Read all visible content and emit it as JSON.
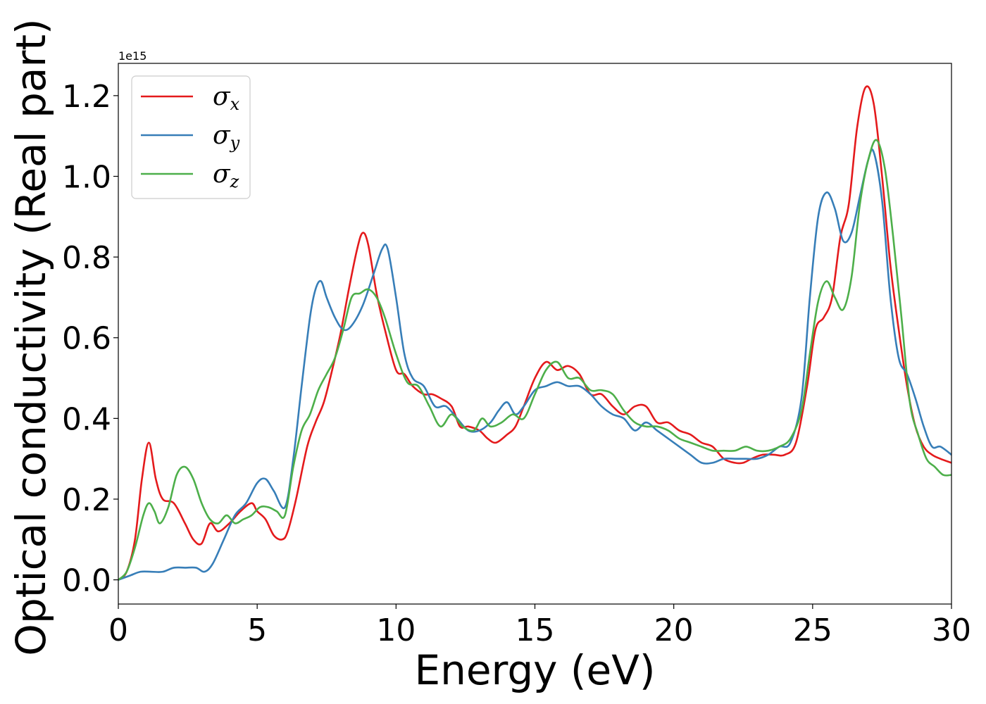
{
  "chart_data": {
    "type": "line",
    "xlabel": "Energy (eV)",
    "ylabel": "Optical conductivity (Real part)",
    "y_offset_label": "1e15",
    "xlim": [
      0,
      30
    ],
    "ylim": [
      -0.06,
      1.28
    ],
    "xticks": [
      0,
      5,
      10,
      15,
      20,
      25,
      30
    ],
    "xtick_labels": [
      "0",
      "5",
      "10",
      "15",
      "20",
      "25",
      "30"
    ],
    "yticks": [
      0.0,
      0.2,
      0.4,
      0.6,
      0.8,
      1.0,
      1.2
    ],
    "ytick_labels": [
      "0.0",
      "0.2",
      "0.4",
      "0.6",
      "0.8",
      "1.0",
      "1.2"
    ],
    "grid": false,
    "legend_position": "top-left",
    "series": [
      {
        "name": "σ",
        "subscript": "x",
        "color": "#e41a1c",
        "x": [
          0,
          0.3,
          0.6,
          0.85,
          1.1,
          1.35,
          1.6,
          2.0,
          2.4,
          2.7,
          3.0,
          3.3,
          3.6,
          4.0,
          4.4,
          4.8,
          5.0,
          5.3,
          5.6,
          5.9,
          6.1,
          6.4,
          6.8,
          7.1,
          7.4,
          7.7,
          8.0,
          8.3,
          8.6,
          8.8,
          9.0,
          9.3,
          9.6,
          10.0,
          10.3,
          10.6,
          11.0,
          11.3,
          11.6,
          12.0,
          12.3,
          12.6,
          13.0,
          13.3,
          13.6,
          14.0,
          14.3,
          14.6,
          15.0,
          15.4,
          15.8,
          16.2,
          16.6,
          17.0,
          17.4,
          17.8,
          18.2,
          18.6,
          19.0,
          19.4,
          19.8,
          20.2,
          20.6,
          21.0,
          21.4,
          21.8,
          22.2,
          22.5,
          22.8,
          23.2,
          23.6,
          24.0,
          24.4,
          24.8,
          25.1,
          25.4,
          25.7,
          26.0,
          26.3,
          26.6,
          26.9,
          27.2,
          27.5,
          27.8,
          28.1,
          28.4,
          28.7,
          29.0,
          29.3,
          29.6,
          30.0
        ],
        "values": [
          0.0,
          0.02,
          0.1,
          0.25,
          0.34,
          0.25,
          0.2,
          0.19,
          0.14,
          0.1,
          0.09,
          0.14,
          0.12,
          0.14,
          0.17,
          0.19,
          0.17,
          0.15,
          0.11,
          0.1,
          0.12,
          0.2,
          0.33,
          0.39,
          0.44,
          0.52,
          0.61,
          0.72,
          0.82,
          0.86,
          0.83,
          0.71,
          0.62,
          0.52,
          0.51,
          0.48,
          0.46,
          0.46,
          0.45,
          0.43,
          0.38,
          0.38,
          0.37,
          0.35,
          0.34,
          0.36,
          0.38,
          0.43,
          0.5,
          0.54,
          0.52,
          0.53,
          0.51,
          0.46,
          0.46,
          0.43,
          0.41,
          0.43,
          0.43,
          0.39,
          0.39,
          0.37,
          0.36,
          0.34,
          0.33,
          0.3,
          0.29,
          0.29,
          0.3,
          0.31,
          0.31,
          0.31,
          0.34,
          0.48,
          0.62,
          0.65,
          0.7,
          0.85,
          0.93,
          1.12,
          1.22,
          1.18,
          1.0,
          0.78,
          0.62,
          0.48,
          0.38,
          0.33,
          0.31,
          0.3,
          0.29
        ]
      },
      {
        "name": "σ",
        "subscript": "y",
        "color": "#377eb8",
        "x": [
          0,
          0.4,
          0.8,
          1.2,
          1.6,
          2.0,
          2.4,
          2.8,
          3.1,
          3.4,
          3.8,
          4.2,
          4.6,
          5.0,
          5.3,
          5.6,
          6.0,
          6.3,
          6.6,
          6.9,
          7.1,
          7.3,
          7.5,
          7.8,
          8.1,
          8.4,
          8.8,
          9.2,
          9.5,
          9.7,
          10.0,
          10.3,
          10.6,
          11.0,
          11.4,
          11.8,
          12.2,
          12.6,
          13.0,
          13.4,
          13.7,
          14.0,
          14.3,
          14.6,
          15.0,
          15.4,
          15.8,
          16.2,
          16.6,
          17.0,
          17.4,
          17.8,
          18.2,
          18.6,
          19.0,
          19.4,
          19.8,
          20.2,
          20.6,
          21.0,
          21.4,
          21.8,
          22.2,
          22.6,
          23.0,
          23.4,
          23.8,
          24.2,
          24.6,
          24.9,
          25.2,
          25.5,
          25.8,
          26.1,
          26.4,
          26.7,
          27.0,
          27.2,
          27.5,
          27.8,
          28.1,
          28.4,
          28.7,
          29.0,
          29.3,
          29.6,
          30.0
        ],
        "values": [
          0.0,
          0.01,
          0.02,
          0.02,
          0.02,
          0.03,
          0.03,
          0.03,
          0.02,
          0.04,
          0.1,
          0.16,
          0.19,
          0.24,
          0.25,
          0.22,
          0.18,
          0.3,
          0.48,
          0.65,
          0.72,
          0.74,
          0.7,
          0.65,
          0.62,
          0.63,
          0.68,
          0.76,
          0.82,
          0.82,
          0.7,
          0.56,
          0.5,
          0.48,
          0.43,
          0.43,
          0.4,
          0.37,
          0.37,
          0.39,
          0.42,
          0.44,
          0.41,
          0.43,
          0.47,
          0.48,
          0.49,
          0.48,
          0.48,
          0.46,
          0.43,
          0.41,
          0.4,
          0.37,
          0.39,
          0.37,
          0.35,
          0.33,
          0.31,
          0.29,
          0.29,
          0.3,
          0.3,
          0.3,
          0.3,
          0.31,
          0.33,
          0.34,
          0.45,
          0.7,
          0.9,
          0.96,
          0.92,
          0.84,
          0.86,
          0.95,
          1.04,
          1.06,
          0.94,
          0.7,
          0.55,
          0.51,
          0.45,
          0.38,
          0.33,
          0.33,
          0.31
        ]
      },
      {
        "name": "σ",
        "subscript": "z",
        "color": "#4daf4a",
        "x": [
          0,
          0.3,
          0.6,
          0.9,
          1.1,
          1.3,
          1.5,
          1.8,
          2.1,
          2.4,
          2.7,
          3.0,
          3.3,
          3.6,
          3.9,
          4.2,
          4.5,
          4.8,
          5.1,
          5.4,
          5.7,
          6.0,
          6.3,
          6.6,
          6.9,
          7.2,
          7.5,
          7.8,
          8.1,
          8.4,
          8.7,
          9.0,
          9.3,
          9.6,
          10.0,
          10.4,
          10.8,
          11.2,
          11.6,
          12.0,
          12.4,
          12.8,
          13.1,
          13.4,
          13.8,
          14.2,
          14.6,
          15.0,
          15.4,
          15.8,
          16.2,
          16.6,
          17.0,
          17.4,
          17.8,
          18.2,
          18.6,
          19.0,
          19.4,
          19.8,
          20.2,
          20.6,
          21.0,
          21.4,
          21.8,
          22.2,
          22.6,
          23.0,
          23.4,
          23.8,
          24.2,
          24.6,
          24.9,
          25.2,
          25.5,
          25.8,
          26.1,
          26.4,
          26.7,
          27.0,
          27.3,
          27.6,
          27.9,
          28.2,
          28.5,
          28.8,
          29.1,
          29.4,
          29.7,
          30.0
        ],
        "values": [
          0.0,
          0.02,
          0.08,
          0.16,
          0.19,
          0.17,
          0.14,
          0.18,
          0.26,
          0.28,
          0.25,
          0.19,
          0.15,
          0.14,
          0.16,
          0.14,
          0.15,
          0.16,
          0.18,
          0.18,
          0.17,
          0.16,
          0.28,
          0.37,
          0.41,
          0.47,
          0.51,
          0.55,
          0.62,
          0.7,
          0.71,
          0.72,
          0.7,
          0.65,
          0.56,
          0.49,
          0.48,
          0.43,
          0.38,
          0.41,
          0.38,
          0.37,
          0.4,
          0.38,
          0.39,
          0.41,
          0.4,
          0.46,
          0.52,
          0.54,
          0.5,
          0.5,
          0.47,
          0.47,
          0.46,
          0.42,
          0.39,
          0.38,
          0.38,
          0.37,
          0.35,
          0.34,
          0.33,
          0.32,
          0.32,
          0.32,
          0.33,
          0.32,
          0.32,
          0.33,
          0.35,
          0.42,
          0.56,
          0.69,
          0.74,
          0.7,
          0.67,
          0.75,
          0.93,
          1.04,
          1.09,
          1.02,
          0.85,
          0.65,
          0.44,
          0.36,
          0.3,
          0.28,
          0.26,
          0.26
        ]
      }
    ]
  }
}
